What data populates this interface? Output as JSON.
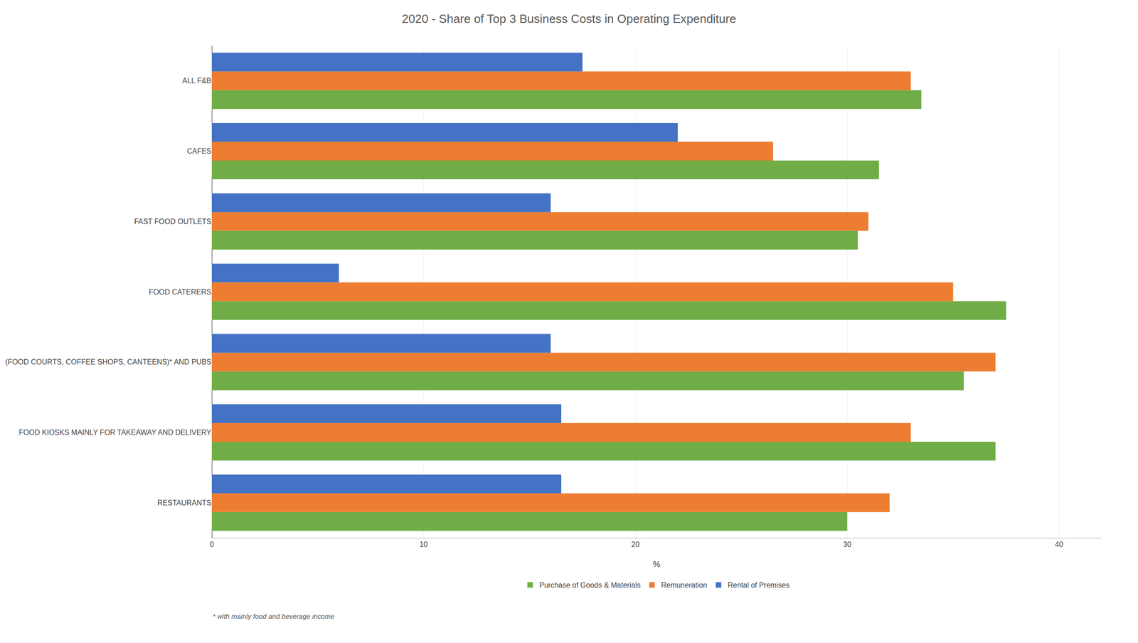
{
  "chart_data": {
    "type": "bar",
    "orientation": "horizontal",
    "title": "2020 - Share of Top 3 Business Costs in Operating Expenditure",
    "categories": [
      "RESTAURANTS",
      "FOOD KIOSKS MAINLY FOR TAKEAWAY AND DELIVERY",
      "(FOOD COURTS, COFFEE SHOPS, CANTEENS)* AND PUBS",
      "FOOD CATERERS",
      "FAST FOOD OUTLETS",
      "CAFES",
      "ALL F&B"
    ],
    "series": [
      {
        "name": "Purchase of Goods & Materials",
        "color": "#70AD47",
        "values": [
          30.0,
          37.0,
          35.5,
          37.5,
          30.5,
          31.5,
          33.5
        ]
      },
      {
        "name": "Remuneration",
        "color": "#ED7D31",
        "values": [
          32.0,
          33.0,
          37.0,
          35.0,
          31.0,
          26.5,
          33.0
        ]
      },
      {
        "name": "Rental of Premises",
        "color": "#4472C4",
        "values": [
          16.5,
          16.5,
          16.0,
          6.0,
          16.0,
          22.0,
          17.5
        ]
      }
    ],
    "xlabel": "%",
    "xlim": [
      0,
      42
    ],
    "xticks": [
      0,
      10,
      20,
      30,
      40
    ],
    "grid": true,
    "legend": "bottom",
    "annotations": [
      "* with mainly food and beverage income"
    ]
  }
}
